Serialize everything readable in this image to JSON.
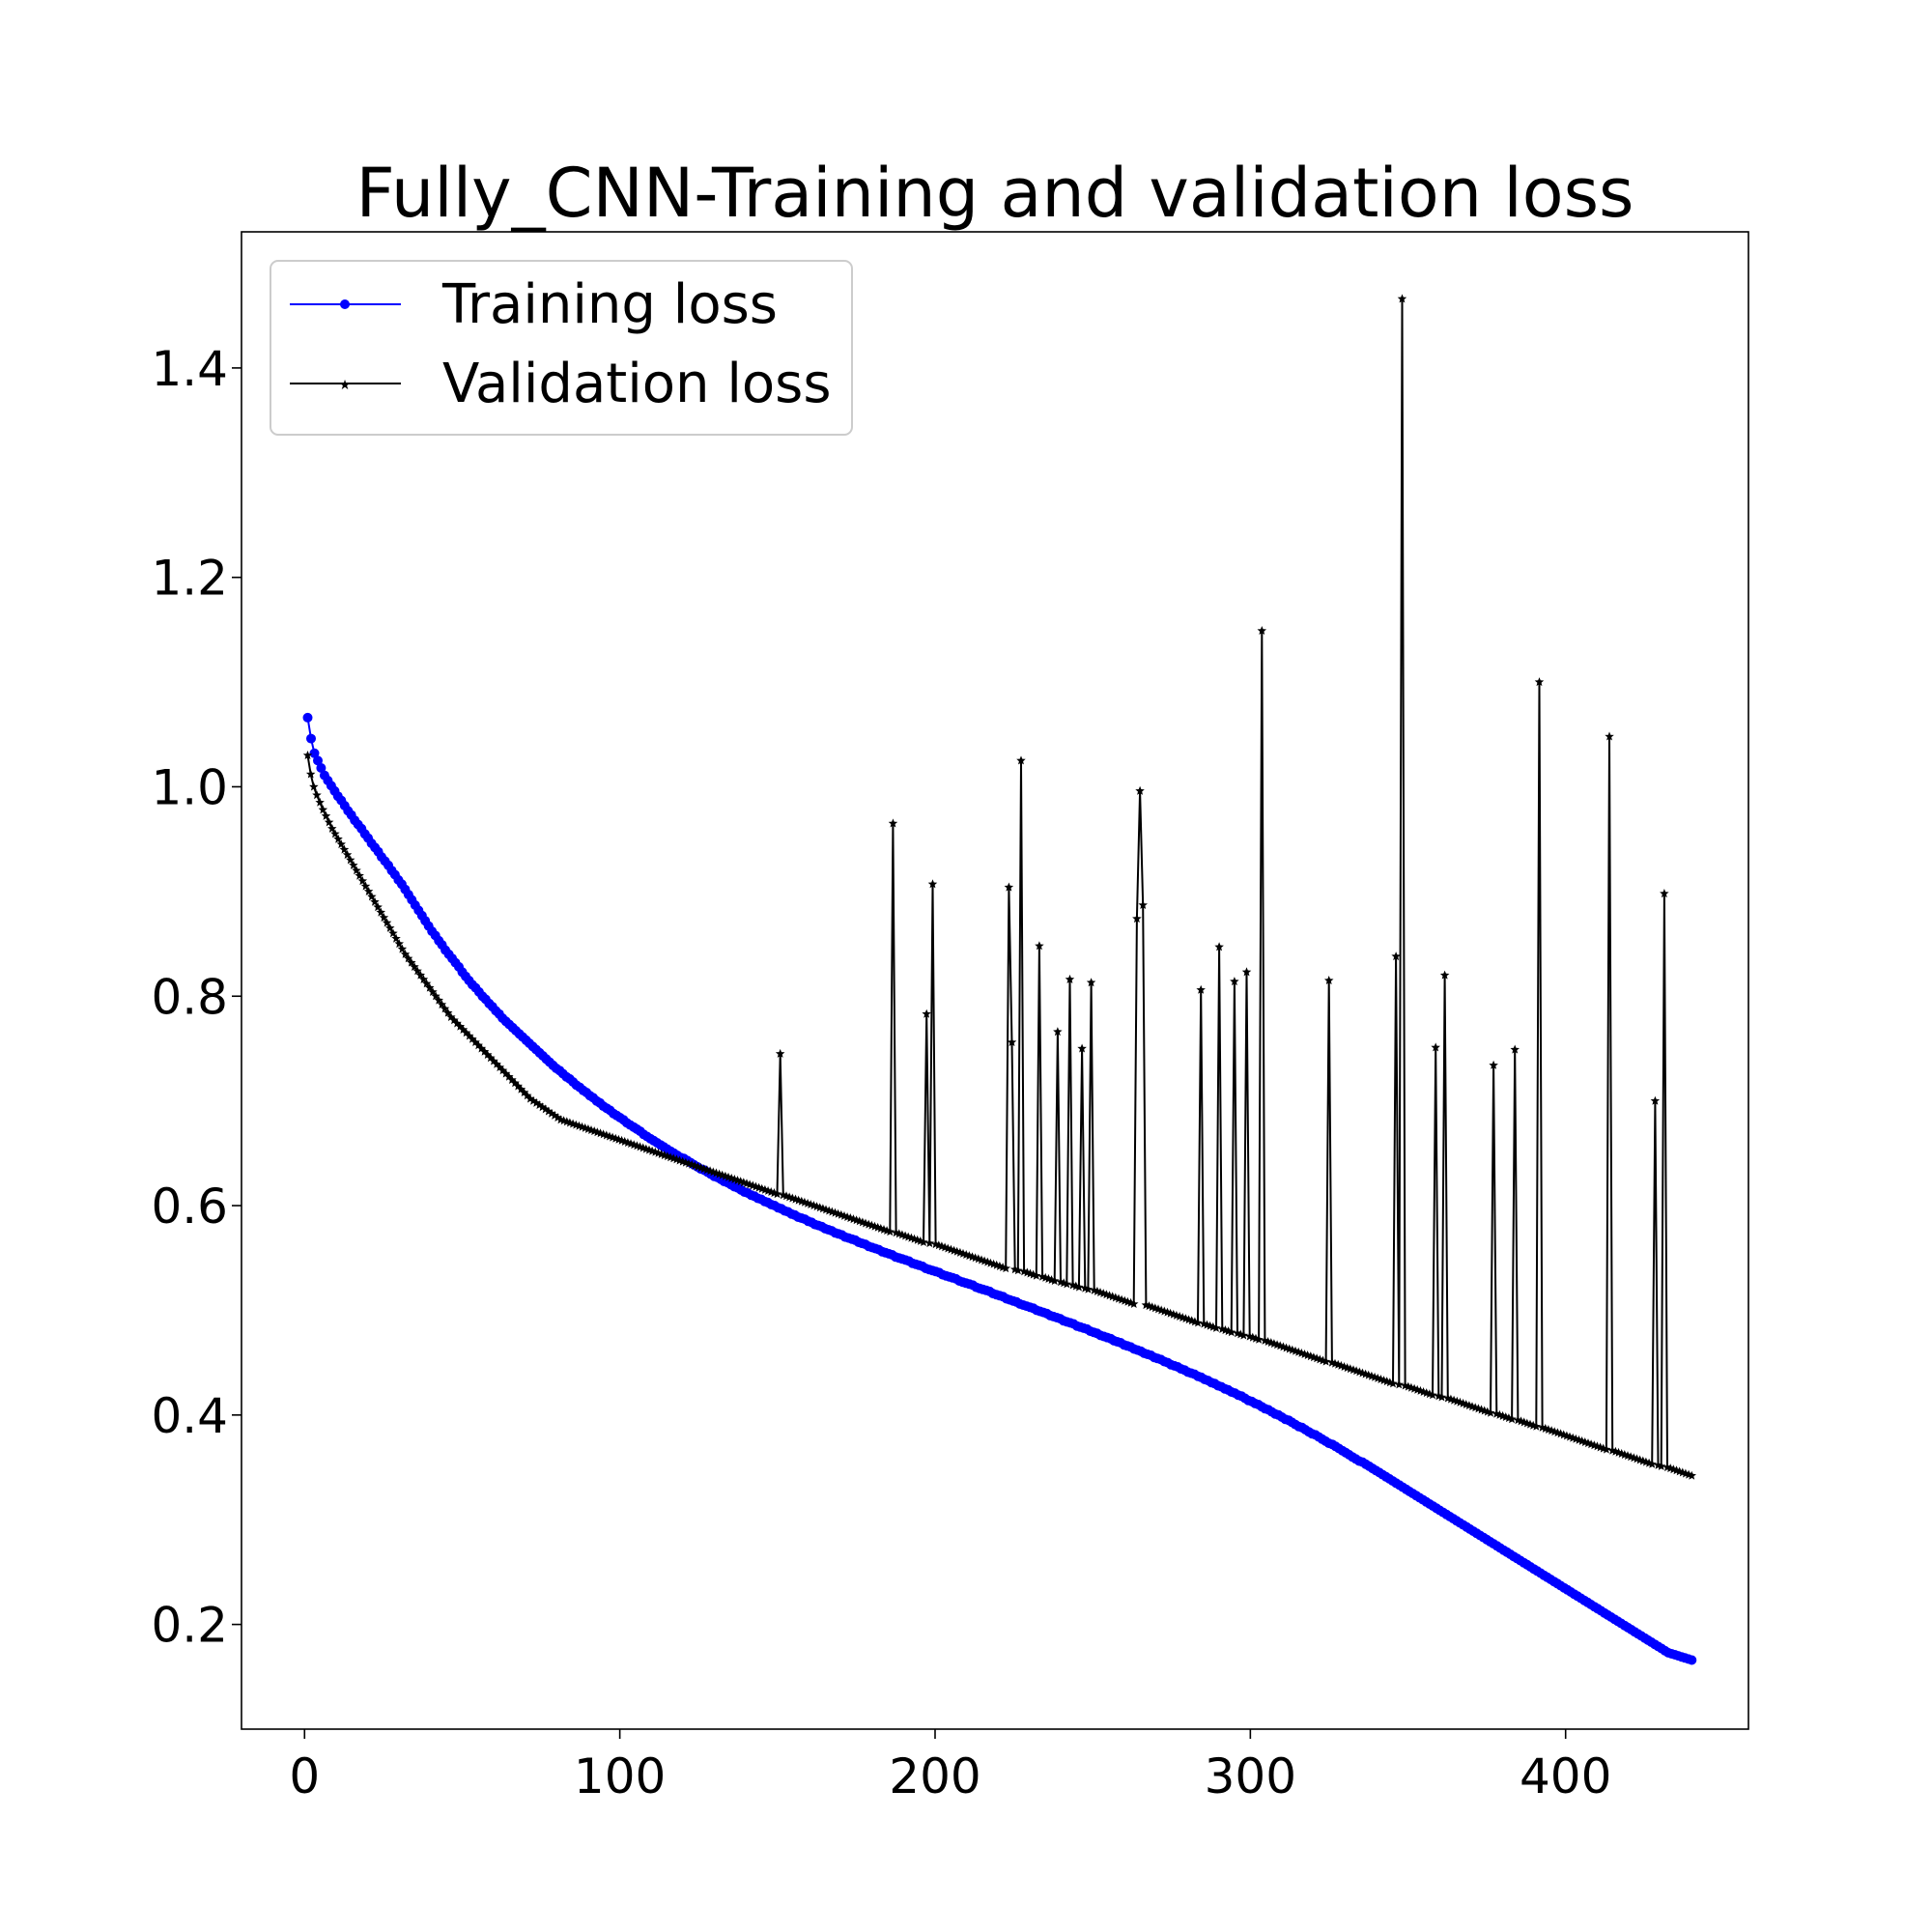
{
  "chart_data": {
    "type": "line",
    "title": "Fully_CNN-Training and validation loss",
    "xlabel": "",
    "ylabel": "",
    "xlim": [
      -20,
      458
    ],
    "ylim": [
      0.1,
      1.53
    ],
    "xticks": [
      0,
      100,
      200,
      300,
      400
    ],
    "xtick_labels": [
      "0",
      "100",
      "200",
      "300",
      "400"
    ],
    "yticks": [
      0.2,
      0.4,
      0.6,
      0.8,
      1.0,
      1.2,
      1.4
    ],
    "ytick_labels": [
      "0.2",
      "0.4",
      "0.6",
      "0.8",
      "1.0",
      "1.2",
      "1.4"
    ],
    "grid": false,
    "legend_position": "top-left",
    "n_points": 440,
    "series": [
      {
        "name": "Training loss",
        "color": "#0000ff",
        "marker": "circle",
        "x_start": 1,
        "x_end": 440,
        "values": [
          1.066,
          1.046,
          1.032,
          1.025,
          1.018,
          1.011,
          1.006,
          1.001,
          0.996,
          0.991,
          0.987,
          0.982,
          0.977,
          0.973,
          0.968,
          0.964,
          0.96,
          0.955,
          0.951,
          0.946,
          0.942,
          0.938,
          0.933,
          0.929,
          0.925,
          0.92,
          0.916,
          0.911,
          0.907,
          0.902,
          0.897,
          0.892,
          0.887,
          0.882,
          0.877,
          0.872,
          0.867,
          0.862,
          0.858,
          0.853,
          0.849,
          0.844,
          0.84,
          0.836,
          0.832,
          0.828,
          0.823,
          0.819,
          0.815,
          0.811,
          0.808,
          0.804,
          0.8,
          0.797,
          0.793,
          0.79,
          0.786,
          0.783,
          0.779,
          0.776,
          0.773,
          0.77,
          0.767,
          0.764,
          0.761,
          0.758,
          0.755,
          0.752,
          0.749,
          0.746,
          0.743,
          0.74,
          0.737,
          0.734,
          0.731,
          0.729,
          0.726,
          0.723,
          0.721,
          0.718,
          0.715,
          0.713,
          0.71,
          0.708,
          0.705,
          0.703,
          0.7,
          0.698,
          0.695,
          0.693,
          0.691,
          0.688,
          0.686,
          0.684,
          0.682,
          0.679,
          0.677,
          0.675,
          0.673,
          0.671,
          0.668,
          0.666,
          0.664,
          0.662,
          0.66,
          0.658,
          0.656,
          0.654,
          0.652,
          0.65,
          0.648,
          0.646,
          0.645,
          0.643,
          0.641,
          0.639,
          0.637,
          0.635,
          0.634,
          0.632,
          0.63,
          0.628,
          0.627,
          0.625,
          0.623,
          0.622,
          0.62,
          0.618,
          0.617,
          0.615,
          0.613,
          0.612,
          0.61,
          0.609,
          0.607,
          0.606,
          0.604,
          0.603,
          0.601,
          0.6,
          0.598,
          0.597,
          0.595,
          0.594,
          0.592,
          0.591,
          0.589,
          0.588,
          0.587,
          0.585,
          0.584,
          0.582,
          0.581,
          0.58,
          0.578,
          0.577,
          0.576,
          0.574,
          0.573,
          0.572,
          0.57,
          0.569,
          0.568,
          0.567,
          0.565,
          0.564,
          0.563,
          0.561,
          0.56,
          0.559,
          0.558,
          0.556,
          0.555,
          0.554,
          0.553,
          0.551,
          0.55,
          0.549,
          0.548,
          0.547,
          0.545,
          0.544,
          0.543,
          0.542,
          0.54,
          0.539,
          0.538,
          0.537,
          0.536,
          0.534,
          0.533,
          0.532,
          0.531,
          0.53,
          0.528,
          0.527,
          0.526,
          0.525,
          0.524,
          0.522,
          0.521,
          0.52,
          0.519,
          0.518,
          0.516,
          0.515,
          0.514,
          0.513,
          0.511,
          0.51,
          0.509,
          0.508,
          0.506,
          0.505,
          0.504,
          0.503,
          0.502,
          0.5,
          0.499,
          0.498,
          0.497,
          0.495,
          0.494,
          0.493,
          0.492,
          0.49,
          0.489,
          0.488,
          0.487,
          0.485,
          0.484,
          0.483,
          0.482,
          0.48,
          0.479,
          0.478,
          0.476,
          0.475,
          0.474,
          0.473,
          0.471,
          0.47,
          0.469,
          0.467,
          0.466,
          0.465,
          0.463,
          0.462,
          0.461,
          0.459,
          0.458,
          0.457,
          0.455,
          0.454,
          0.453,
          0.451,
          0.45,
          0.448,
          0.447,
          0.446,
          0.444,
          0.443,
          0.441,
          0.44,
          0.439,
          0.437,
          0.436,
          0.434,
          0.433,
          0.431,
          0.43,
          0.428,
          0.427,
          0.425,
          0.424,
          0.422,
          0.421,
          0.419,
          0.418,
          0.416,
          0.414,
          0.413,
          0.411,
          0.41,
          0.408,
          0.406,
          0.405,
          0.403,
          0.401,
          0.4,
          0.398,
          0.396,
          0.395,
          0.393,
          0.391,
          0.389,
          0.388,
          0.386,
          0.384,
          0.382,
          0.381,
          0.379,
          0.377,
          0.375,
          0.373,
          0.372,
          0.37,
          0.368,
          0.366,
          0.364,
          0.362,
          0.36,
          0.358,
          0.356,
          0.355,
          0.353,
          0.351,
          0.349,
          0.347,
          0.345,
          0.343,
          0.341,
          0.339,
          0.337,
          0.335,
          0.333,
          0.331,
          0.329,
          0.327,
          0.325,
          0.323,
          0.321,
          0.319,
          0.317,
          0.315,
          0.313,
          0.311,
          0.309,
          0.307,
          0.305,
          0.303,
          0.301,
          0.299,
          0.297,
          0.295,
          0.293,
          0.291,
          0.289,
          0.287,
          0.285,
          0.283,
          0.281,
          0.279,
          0.277,
          0.275,
          0.273,
          0.271,
          0.269,
          0.267,
          0.265,
          0.263,
          0.261,
          0.259,
          0.257,
          0.255,
          0.253,
          0.251,
          0.249,
          0.247,
          0.245,
          0.243,
          0.241,
          0.239,
          0.237,
          0.235,
          0.233,
          0.231,
          0.229,
          0.227,
          0.225,
          0.223,
          0.221,
          0.219,
          0.217,
          0.215,
          0.213,
          0.211,
          0.209,
          0.207,
          0.205,
          0.203,
          0.201,
          0.199,
          0.197,
          0.195,
          0.193,
          0.191,
          0.189,
          0.187,
          0.185,
          0.183,
          0.181,
          0.179,
          0.177,
          0.175,
          0.173,
          0.172,
          0.171,
          0.17,
          0.169,
          0.168,
          0.167,
          0.166
        ]
      },
      {
        "name": "Validation loss",
        "color": "#000000",
        "marker": "star",
        "x_start": 1,
        "x_end": 440,
        "values": [
          1.03,
          1.012,
          1.0,
          0.992,
          0.985,
          0.978,
          0.972,
          0.966,
          0.96,
          0.955,
          0.95,
          0.945,
          0.94,
          0.935,
          0.93,
          0.925,
          0.92,
          0.915,
          0.91,
          0.905,
          0.9,
          0.895,
          0.89,
          0.885,
          0.88,
          0.875,
          0.87,
          0.865,
          0.86,
          0.855,
          0.85,
          0.845,
          0.84,
          0.836,
          0.832,
          0.828,
          0.824,
          0.82,
          0.816,
          0.812,
          0.808,
          0.804,
          0.8,
          0.796,
          0.792,
          0.788,
          0.784,
          0.78,
          0.777,
          0.774,
          0.771,
          0.768,
          0.765,
          0.762,
          0.759,
          0.756,
          0.753,
          0.75,
          0.747,
          0.744,
          0.741,
          0.738,
          0.735,
          0.732,
          0.729,
          0.726,
          0.723,
          0.72,
          0.717,
          0.714,
          0.711,
          0.708,
          0.705,
          0.702,
          0.7,
          0.698,
          0.696,
          0.694,
          0.692,
          0.69,
          0.688,
          0.686,
          0.684,
          0.682,
          0.681,
          0.68,
          0.679,
          0.678,
          0.677,
          0.676,
          0.675,
          0.674,
          0.673,
          0.672,
          0.671,
          0.67,
          0.669,
          0.668,
          0.667,
          0.666,
          0.665,
          0.664,
          0.663,
          0.662,
          0.661,
          0.66,
          0.659,
          0.658,
          0.657,
          0.656,
          0.655,
          0.654,
          0.653,
          0.652,
          0.651,
          0.65,
          0.649,
          0.648,
          0.647,
          0.646,
          0.645,
          0.644,
          0.643,
          0.642,
          0.641,
          0.64,
          0.639,
          0.638,
          0.637,
          0.636,
          0.635,
          0.634,
          0.633,
          0.632,
          0.631,
          0.63,
          0.629,
          0.628,
          0.627,
          0.626,
          0.625,
          0.624,
          0.623,
          0.622,
          0.621,
          0.62,
          0.619,
          0.618,
          0.617,
          0.616,
          0.615,
          0.614,
          0.613,
          0.612,
          0.611,
          0.745,
          0.61,
          0.609,
          0.608,
          0.607,
          0.606,
          0.605,
          0.604,
          0.603,
          0.602,
          0.601,
          0.6,
          0.599,
          0.598,
          0.597,
          0.596,
          0.595,
          0.594,
          0.593,
          0.592,
          0.591,
          0.59,
          0.589,
          0.588,
          0.587,
          0.586,
          0.585,
          0.584,
          0.583,
          0.582,
          0.581,
          0.58,
          0.579,
          0.578,
          0.577,
          0.576,
          0.575,
          0.965,
          0.574,
          0.573,
          0.572,
          0.571,
          0.57,
          0.569,
          0.568,
          0.567,
          0.566,
          0.565,
          0.783,
          0.564,
          0.907,
          0.563,
          0.562,
          0.561,
          0.56,
          0.559,
          0.558,
          0.557,
          0.556,
          0.555,
          0.554,
          0.553,
          0.552,
          0.551,
          0.55,
          0.549,
          0.548,
          0.547,
          0.546,
          0.545,
          0.544,
          0.543,
          0.542,
          0.541,
          0.54,
          0.904,
          0.756,
          0.539,
          0.538,
          1.025,
          0.537,
          0.536,
          0.535,
          0.534,
          0.533,
          0.848,
          0.532,
          0.531,
          0.53,
          0.529,
          0.528,
          0.766,
          0.527,
          0.526,
          0.525,
          0.816,
          0.524,
          0.523,
          0.522,
          0.75,
          0.521,
          0.52,
          0.813,
          0.519,
          0.518,
          0.517,
          0.516,
          0.515,
          0.514,
          0.513,
          0.512,
          0.511,
          0.51,
          0.509,
          0.508,
          0.507,
          0.506,
          0.874,
          0.996,
          0.887,
          0.505,
          0.504,
          0.503,
          0.502,
          0.501,
          0.5,
          0.499,
          0.498,
          0.497,
          0.496,
          0.495,
          0.494,
          0.493,
          0.492,
          0.491,
          0.49,
          0.489,
          0.488,
          0.806,
          0.487,
          0.486,
          0.485,
          0.484,
          0.483,
          0.847,
          0.482,
          0.481,
          0.48,
          0.479,
          0.814,
          0.478,
          0.477,
          0.476,
          0.823,
          0.475,
          0.474,
          0.473,
          0.472,
          1.149,
          0.471,
          0.47,
          0.469,
          0.468,
          0.467,
          0.466,
          0.465,
          0.464,
          0.463,
          0.462,
          0.461,
          0.46,
          0.459,
          0.458,
          0.457,
          0.456,
          0.455,
          0.454,
          0.453,
          0.452,
          0.451,
          0.815,
          0.45,
          0.449,
          0.448,
          0.447,
          0.446,
          0.445,
          0.444,
          0.443,
          0.442,
          0.441,
          0.44,
          0.439,
          0.438,
          0.437,
          0.436,
          0.435,
          0.434,
          0.433,
          0.432,
          0.431,
          0.43,
          0.838,
          0.429,
          1.466,
          0.428,
          0.427,
          0.426,
          0.425,
          0.424,
          0.423,
          0.422,
          0.421,
          0.42,
          0.419,
          0.751,
          0.418,
          0.417,
          0.82,
          0.416,
          0.415,
          0.414,
          0.413,
          0.412,
          0.411,
          0.41,
          0.409,
          0.408,
          0.407,
          0.406,
          0.405,
          0.404,
          0.403,
          0.402,
          0.734,
          0.401,
          0.4,
          0.399,
          0.398,
          0.397,
          0.396,
          0.749,
          0.395,
          0.394,
          0.393,
          0.392,
          0.391,
          0.39,
          0.389,
          1.1,
          0.388,
          0.387,
          0.386,
          0.385,
          0.384,
          0.383,
          0.382,
          0.381,
          0.38,
          0.379,
          0.378,
          0.377,
          0.376,
          0.375,
          0.374,
          0.373,
          0.372,
          0.371,
          0.37,
          0.369,
          0.368,
          0.367,
          1.048,
          0.366,
          0.365,
          0.364,
          0.363,
          0.362,
          0.361,
          0.36,
          0.359,
          0.358,
          0.357,
          0.356,
          0.355,
          0.354,
          0.353,
          0.7,
          0.352,
          0.351,
          0.898,
          0.35,
          0.349,
          0.348,
          0.347,
          0.346,
          0.345,
          0.344,
          0.343,
          0.342
        ]
      }
    ]
  }
}
